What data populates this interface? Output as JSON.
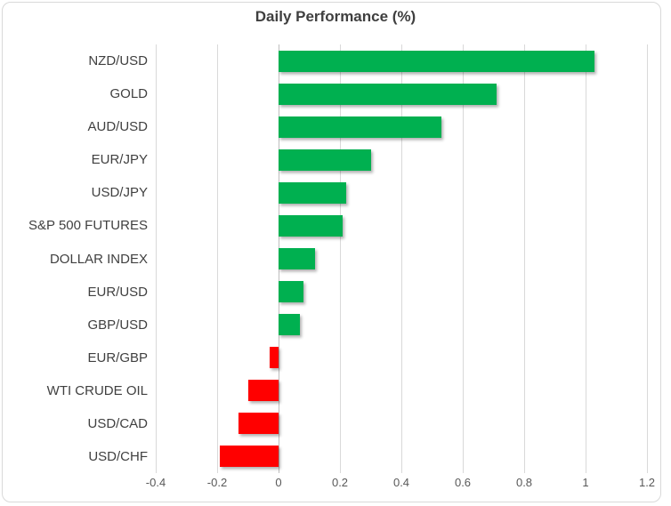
{
  "chart_data": {
    "type": "bar",
    "orientation": "horizontal",
    "title": "Daily Performance (%)",
    "categories": [
      "NZD/USD",
      "GOLD",
      "AUD/USD",
      "EUR/JPY",
      "USD/JPY",
      "S&P 500 FUTURES",
      "DOLLAR INDEX",
      "EUR/USD",
      "GBP/USD",
      "EUR/GBP",
      "WTI CRUDE OIL",
      "USD/CAD",
      "USD/CHF"
    ],
    "values": [
      1.03,
      0.71,
      0.53,
      0.3,
      0.22,
      0.21,
      0.12,
      0.08,
      0.07,
      -0.03,
      -0.1,
      -0.13,
      -0.19
    ],
    "xlim": [
      -0.4,
      1.2
    ],
    "xticks": [
      -0.4,
      -0.2,
      0,
      0.2,
      0.4,
      0.6,
      0.8,
      1,
      1.2
    ],
    "xtick_labels": [
      "-0.4",
      "-0.2",
      "0",
      "0.2",
      "0.4",
      "0.6",
      "0.8",
      "1",
      "1.2"
    ],
    "colors": {
      "positive": "#00B050",
      "negative": "#FF0000",
      "gridline": "#D9D9D9",
      "zero_line": "#BFBFBF",
      "title_text": "#3F3F3F",
      "category_text": "#404040",
      "tick_text": "#595959"
    },
    "grid": "vertical",
    "legend": "none"
  }
}
